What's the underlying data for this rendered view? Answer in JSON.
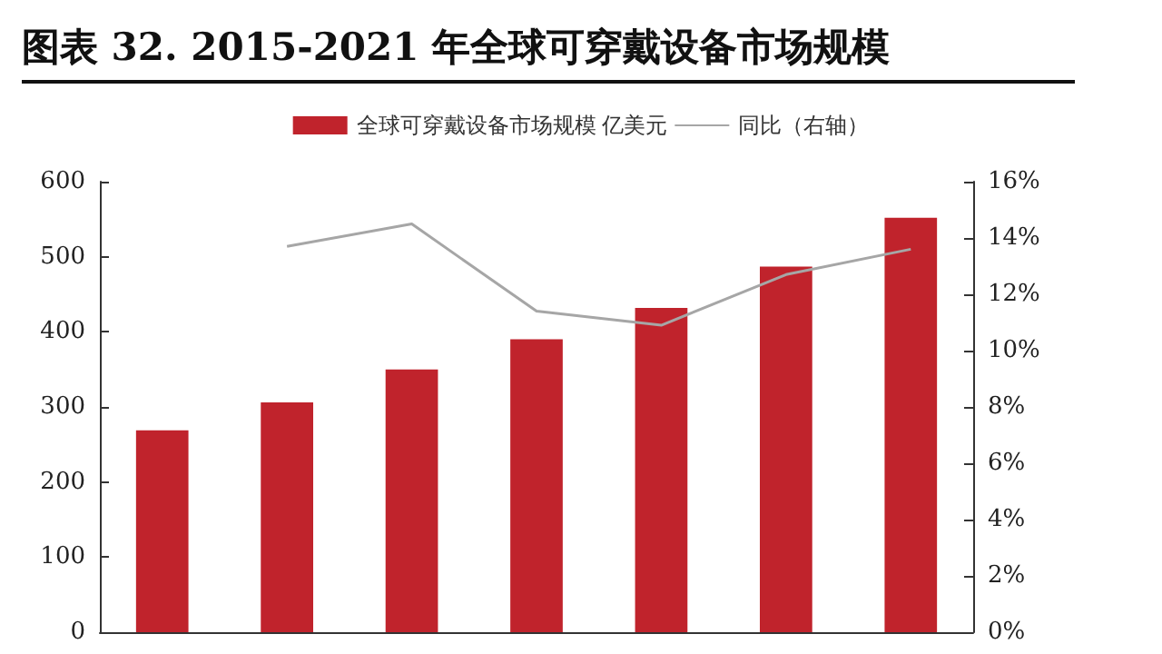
{
  "chart_data": {
    "type": "bar",
    "title": "图表 32. 2015-2021 年全球可穿戴设备市场规模",
    "categories": [
      null,
      null,
      null,
      null,
      null,
      null,
      null
    ],
    "series": [
      {
        "name": "全球可穿戴设备市场规模 亿美元",
        "color": "#c0232c",
        "values": [
          269,
          306,
          350,
          390,
          432,
          487,
          552
        ]
      },
      {
        "name": "同比（右轴）",
        "type": "line",
        "axis": "y2",
        "color": "#a6a6a6",
        "values": [
          null,
          13.7,
          14.5,
          11.4,
          10.9,
          12.7,
          13.6
        ]
      }
    ],
    "ylim": [
      0,
      600
    ],
    "yticks": [
      0,
      100,
      200,
      300,
      400,
      500,
      600
    ],
    "y2lim": [
      0,
      16
    ],
    "y2ticks": [
      {
        "value": 0,
        "label": "0%"
      },
      {
        "value": 2,
        "label": "2%"
      },
      {
        "value": 4,
        "label": "4%"
      },
      {
        "value": 6,
        "label": "6%"
      },
      {
        "value": 8,
        "label": "8%"
      },
      {
        "value": 10,
        "label": "10%"
      },
      {
        "value": 12,
        "label": "12%"
      },
      {
        "value": 14,
        "label": "14%"
      },
      {
        "value": 16,
        "label": "16%"
      }
    ],
    "grid": false,
    "legend": "top",
    "marker": "none"
  }
}
